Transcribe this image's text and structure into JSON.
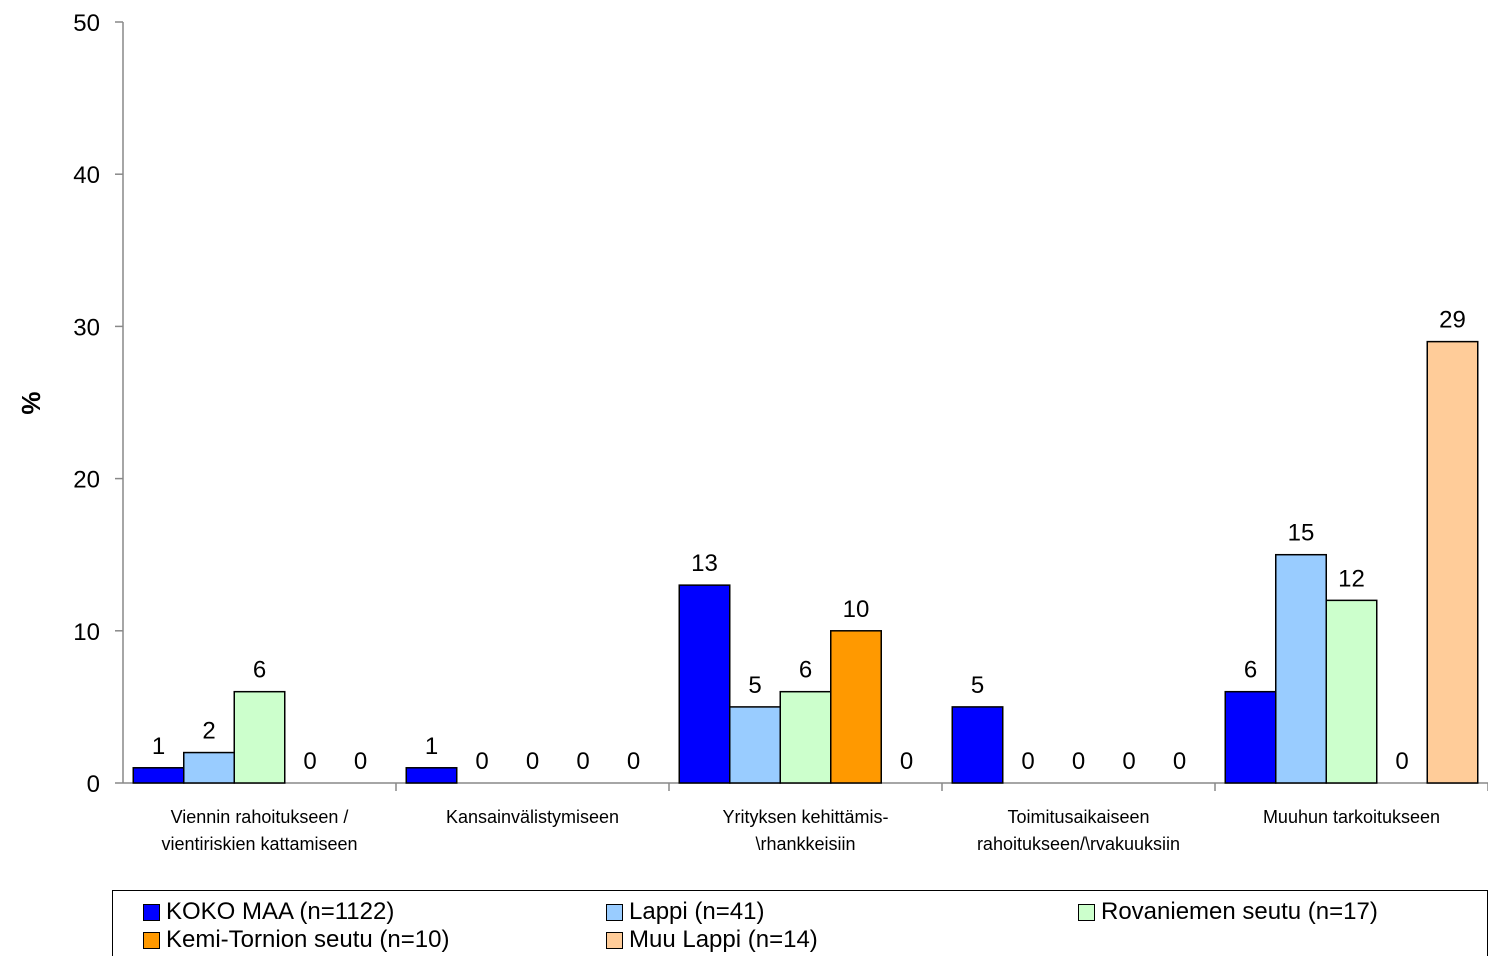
{
  "chart_data": {
    "type": "bar",
    "ylabel": "%",
    "xlabel": "",
    "ylim": [
      0,
      50
    ],
    "yticks": [
      0,
      10,
      20,
      30,
      40,
      50
    ],
    "categories": [
      [
        "Viennin rahoitukseen /",
        "vientiriskien kattamiseen"
      ],
      [
        "Kansainvälistymiseen"
      ],
      [
        "Yrityksen kehittämis-",
        "\\rhankkeisiin"
      ],
      [
        "Toimitusaikaiseen",
        "rahoitukseen/\\rvakuuksiin"
      ],
      [
        "Muuhun tarkoitukseen"
      ]
    ],
    "series": [
      {
        "name": "KOKO MAA (n=1122)",
        "color": "#0000ff",
        "values": [
          1,
          1,
          13,
          5,
          6
        ]
      },
      {
        "name": "Lappi (n=41)",
        "color": "#99ccff",
        "values": [
          2,
          0,
          5,
          0,
          15
        ]
      },
      {
        "name": "Rovaniemen seutu (n=17)",
        "color": "#ccffcc",
        "values": [
          6,
          0,
          6,
          0,
          12
        ]
      },
      {
        "name": "Kemi-Tornion seutu (n=10)",
        "color": "#ff9900",
        "values": [
          0,
          0,
          10,
          0,
          0
        ]
      },
      {
        "name": "Muu Lappi (n=14)",
        "color": "#ffcc99",
        "values": [
          0,
          0,
          0,
          0,
          29
        ]
      }
    ],
    "grid": false,
    "legend_position": "bottom"
  }
}
